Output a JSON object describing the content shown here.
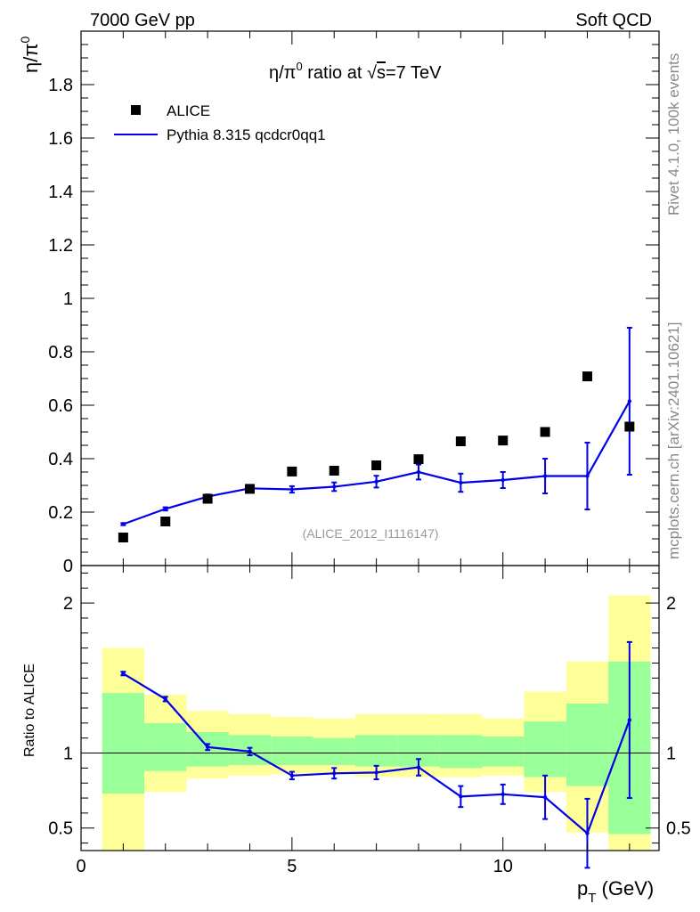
{
  "header": {
    "left": "7000 GeV pp",
    "right": "Soft QCD"
  },
  "side_labels": {
    "rivet": "Rivet 4.1.0,  100k events",
    "mcplots": "mcplots.cern.ch [arXiv:2401.10621]"
  },
  "chart_data": [
    {
      "type": "scatter",
      "panel": "main",
      "title_parts": {
        "eta_pi": "η/π",
        "zero": "0",
        "ratio_at": " ratio at ",
        "sqrt": "√",
        "s": "s",
        "energy": "=7 TeV"
      },
      "ylabel_parts": {
        "base": "η/π",
        "sup": "0"
      },
      "analysis_id": "(ALICE_2012_I1116147)",
      "ylim": [
        0,
        2.0
      ],
      "xlim": [
        0,
        13.7
      ],
      "y_ticks": [
        0,
        0.2,
        0.4,
        0.6,
        0.8,
        1,
        1.2,
        1.4,
        1.6,
        1.8
      ],
      "y_tick_labels": [
        "0",
        "0.2",
        "0.4",
        "0.6",
        "0.8",
        "1",
        "1.2",
        "1.4",
        "1.6",
        "1.8"
      ],
      "legend": {
        "placement": "top-left",
        "data_label": "ALICE",
        "mc_label": "Pythia 8.315 qcdcr0qq1"
      },
      "series": [
        {
          "name": "ALICE",
          "style": "markers",
          "color": "#000000",
          "x": [
            1,
            2,
            3,
            4,
            5,
            6,
            7,
            8,
            9,
            10,
            11,
            12,
            13
          ],
          "y": [
            0.105,
            0.165,
            0.25,
            0.287,
            0.352,
            0.355,
            0.375,
            0.398,
            0.465,
            0.468,
            0.5,
            0.708,
            0.52
          ]
        },
        {
          "name": "Pythia 8.315 qcdcr0qq1",
          "style": "line",
          "color": "#0000e6",
          "x": [
            1,
            2,
            3,
            4,
            5,
            6,
            7,
            8,
            9,
            10,
            11,
            12,
            13
          ],
          "y": [
            0.155,
            0.212,
            0.258,
            0.289,
            0.285,
            0.295,
            0.314,
            0.35,
            0.31,
            0.32,
            0.335,
            0.335,
            0.615
          ],
          "err": [
            0.004,
            0.006,
            0.008,
            0.01,
            0.012,
            0.016,
            0.022,
            0.028,
            0.034,
            0.03,
            0.065,
            0.125,
            0.275
          ]
        }
      ]
    },
    {
      "type": "line",
      "panel": "ratio",
      "ylabel": "Ratio to ALICE",
      "xlabel_parts": {
        "p": "p",
        "sub": "T",
        "unit": " (GeV)"
      },
      "ylim": [
        0.35,
        2.25
      ],
      "xlim": [
        0,
        13.7
      ],
      "y_ticks": [
        0.5,
        1,
        2
      ],
      "y_tick_labels": [
        "0.5",
        "1",
        "2"
      ],
      "x_ticks": [
        0,
        5,
        10
      ],
      "x_tick_labels": [
        "0",
        "5",
        "10"
      ],
      "bands": {
        "x_lo": [
          0.5,
          1.5,
          2.5,
          3.5,
          4.5,
          5.5,
          6.5,
          7.5,
          8.5,
          9.5,
          10.5,
          11.5,
          12.5
        ],
        "x_hi": [
          1.5,
          2.5,
          3.5,
          4.5,
          5.5,
          6.5,
          7.5,
          8.5,
          9.5,
          10.5,
          11.5,
          12.5,
          13.5
        ],
        "yellow_lo": [
          0.35,
          0.74,
          0.83,
          0.85,
          0.86,
          0.86,
          0.84,
          0.84,
          0.84,
          0.85,
          0.74,
          0.47,
          0.35
        ],
        "yellow_hi": [
          1.7,
          1.39,
          1.28,
          1.26,
          1.24,
          1.23,
          1.26,
          1.26,
          1.26,
          1.23,
          1.41,
          1.61,
          2.05
        ],
        "green_lo": [
          0.73,
          0.88,
          0.91,
          0.92,
          0.92,
          0.92,
          0.91,
          0.91,
          0.9,
          0.91,
          0.84,
          0.78,
          0.46
        ],
        "green_hi": [
          1.4,
          1.2,
          1.14,
          1.12,
          1.11,
          1.1,
          1.12,
          1.12,
          1.12,
          1.11,
          1.21,
          1.33,
          1.61
        ],
        "yellow_color": "#ffff99",
        "green_color": "#99ff99"
      },
      "series": [
        {
          "name": "Pythia 8.315 qcdcr0qq1 / ALICE",
          "color": "#0000e6",
          "x": [
            1,
            2,
            3,
            4,
            5,
            6,
            7,
            8,
            9,
            10,
            11,
            12,
            13
          ],
          "y": [
            1.53,
            1.36,
            1.04,
            1.01,
            0.85,
            0.865,
            0.87,
            0.905,
            0.71,
            0.725,
            0.705,
            0.465,
            1.22
          ],
          "err": [
            0.012,
            0.015,
            0.02,
            0.025,
            0.025,
            0.035,
            0.045,
            0.055,
            0.07,
            0.065,
            0.145,
            0.23,
            0.52
          ]
        }
      ]
    }
  ]
}
